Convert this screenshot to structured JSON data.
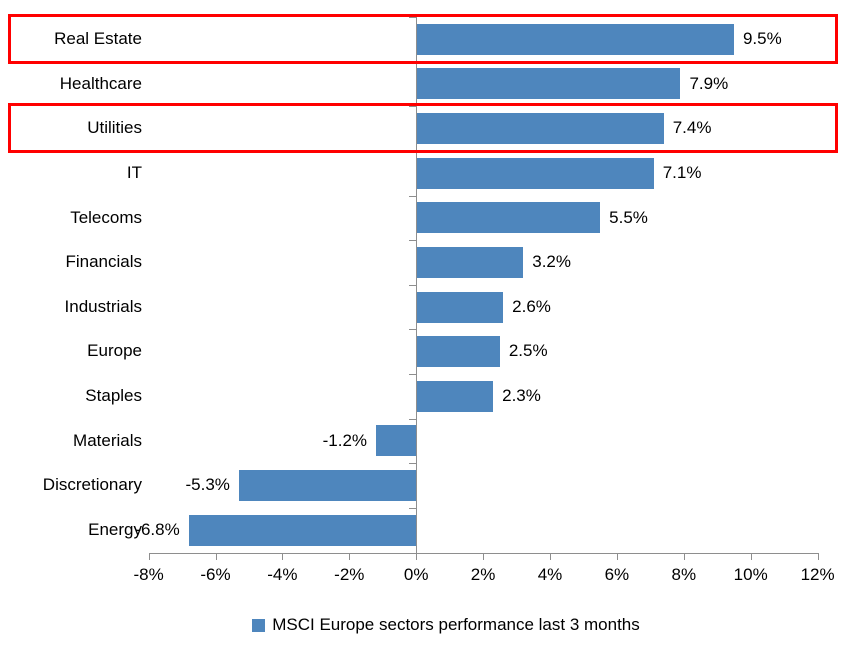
{
  "chart_data": {
    "type": "bar",
    "orientation": "horizontal",
    "title": "",
    "categories": [
      "Real Estate",
      "Healthcare",
      "Utilities",
      "IT",
      "Telecoms",
      "Financials",
      "Industrials",
      "Europe",
      "Staples",
      "Materials",
      "Discretionary",
      "Energy"
    ],
    "values": [
      9.5,
      7.9,
      7.4,
      7.1,
      5.5,
      3.2,
      2.6,
      2.5,
      2.3,
      -1.2,
      -5.3,
      -6.8
    ],
    "data_labels": [
      "9.5%",
      "7.9%",
      "7.4%",
      "7.1%",
      "5.5%",
      "3.2%",
      "2.6%",
      "2.5%",
      "2.3%",
      "-1.2%",
      "-5.3%",
      "-6.8%"
    ],
    "xlim": [
      -8,
      12
    ],
    "x_ticks": [
      -8,
      -6,
      -4,
      -2,
      0,
      2,
      4,
      6,
      8,
      10,
      12
    ],
    "x_tick_labels": [
      "-8%",
      "-6%",
      "-4%",
      "-2%",
      "0%",
      "2%",
      "4%",
      "6%",
      "8%",
      "10%",
      "12%"
    ],
    "xlabel": "",
    "ylabel": "",
    "grid": false,
    "legend": "MSCI Europe sectors performance last 3 months",
    "legend_position": "bottom",
    "bar_color": "#4E86BD",
    "axis_color": "#8E8E8E",
    "highlight_color": "#FF0000",
    "highlighted_categories": [
      "Real Estate",
      "Utilities"
    ]
  }
}
